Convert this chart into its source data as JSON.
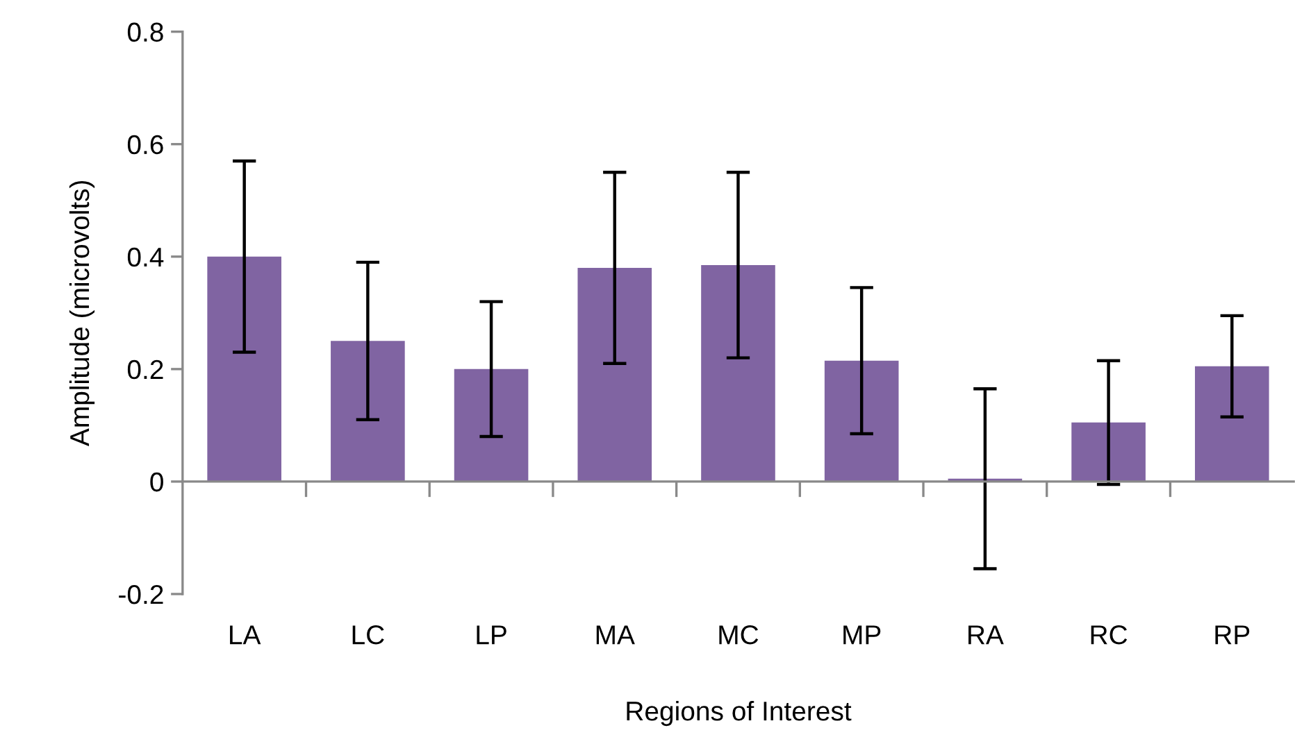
{
  "chart_data": {
    "type": "bar",
    "xlabel": "Regions of Interest",
    "ylabel": "Amplitude (microvolts)",
    "categories": [
      "LA",
      "LC",
      "LP",
      "MA",
      "MC",
      "MP",
      "RA",
      "RC",
      "RP"
    ],
    "values": [
      0.4,
      0.25,
      0.2,
      0.38,
      0.385,
      0.215,
      0.005,
      0.105,
      0.205
    ],
    "errors": [
      0.17,
      0.14,
      0.12,
      0.17,
      0.165,
      0.13,
      0.16,
      0.11,
      0.09
    ],
    "color": "#8064a2",
    "ylim": [
      -0.2,
      0.8
    ],
    "yticks": [
      -0.2,
      0,
      0.2,
      0.4,
      0.6,
      0.8
    ],
    "legend": false
  }
}
